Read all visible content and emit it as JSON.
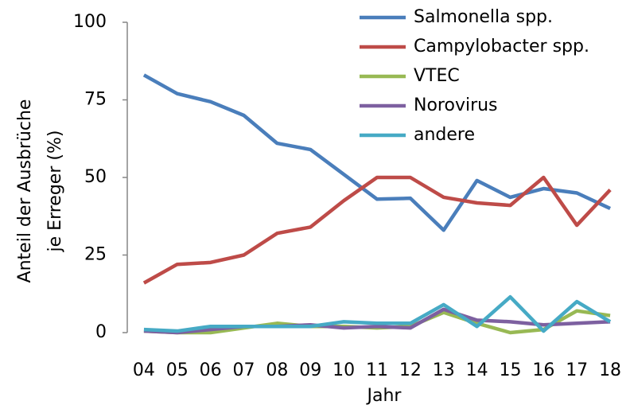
{
  "chart_data": {
    "type": "line",
    "x_label": "Jahr",
    "y_label": [
      "Anteil der Ausbrüche",
      "je Erreger (%)"
    ],
    "categories": [
      "04",
      "05",
      "06",
      "07",
      "08",
      "09",
      "10",
      "11",
      "12",
      "13",
      "14",
      "15",
      "16",
      "17",
      "18"
    ],
    "ylim": [
      0,
      100
    ],
    "yticks": [
      0,
      25,
      50,
      75,
      100
    ],
    "grid": false,
    "legend": "top-right",
    "series": [
      {
        "name": "Salmonella spp.",
        "color": "#4a7ebb",
        "values": [
          83,
          77,
          74.4,
          70,
          61,
          59,
          51,
          43,
          43.3,
          33,
          49,
          43.6,
          46.4,
          45,
          40
        ]
      },
      {
        "name": "Campylobacter spp.",
        "color": "#be4b48",
        "values": [
          16,
          22,
          22.6,
          25,
          32,
          34,
          42.5,
          50,
          50,
          43.6,
          41.8,
          41,
          50,
          34.6,
          46
        ]
      },
      {
        "name": "VTEC",
        "color": "#98b954",
        "values": [
          0.5,
          0,
          0,
          1.5,
          3,
          2,
          2,
          1.5,
          2,
          6.5,
          3,
          0,
          1,
          7,
          5.5
        ]
      },
      {
        "name": "Norovirus",
        "color": "#7d60a0",
        "values": [
          0.5,
          0,
          1,
          2,
          2,
          2.5,
          1.5,
          2,
          1.5,
          7.5,
          4,
          3.5,
          2.5,
          3,
          3.5
        ]
      },
      {
        "name": "andere",
        "color": "#46aac5",
        "values": [
          1,
          0.5,
          2,
          2,
          2,
          2,
          3.5,
          3,
          3,
          9,
          2,
          11.5,
          0.5,
          10,
          3.5
        ]
      }
    ]
  }
}
